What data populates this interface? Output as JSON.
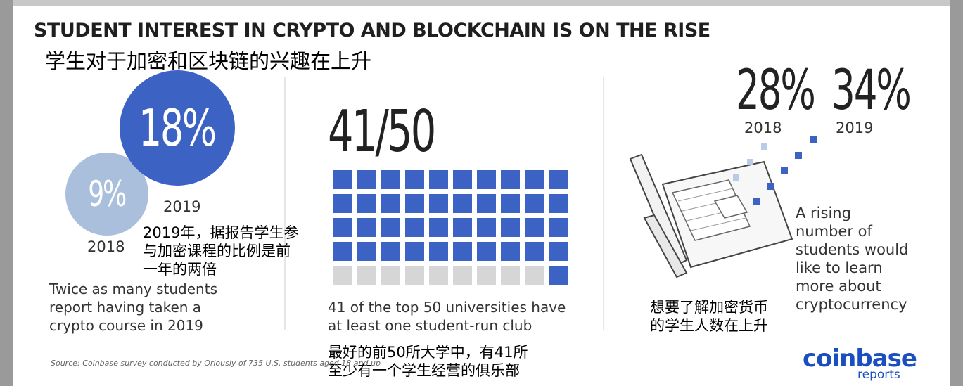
{
  "title": "STUDENT INTEREST IN CRYPTO AND BLOCKCHAIN IS ON THE RISE",
  "title_cn": "学生对于加密和区块链的兴趣在上升",
  "chart_data": [
    {
      "type": "bubble",
      "panel": "left",
      "series": [
        {
          "year": "2018",
          "value": 9,
          "label": "9%",
          "color": "#a9bfdc"
        },
        {
          "year": "2019",
          "value": 18,
          "label": "18%",
          "color": "#3c62c4"
        }
      ],
      "caption": "Twice as many students\nreport having taken a\ncrypto course in 2019",
      "caption_cn": "2019年，据报告学生参\n与加密课程的比例是前\n一年的两倍"
    },
    {
      "type": "waffle",
      "panel": "middle",
      "headline": "41/50",
      "value": 41,
      "total": 50,
      "rows": 5,
      "cols": 10,
      "filled_color": "#3c62c4",
      "empty_color": "#d6d6d6",
      "caption": "41 of the top 50 universities have\nat least one student-run club",
      "caption_cn": "最好的前50所大学中，有41所\n至少有一个学生经营的俱乐部"
    },
    {
      "type": "comparison",
      "panel": "right",
      "series": [
        {
          "year": "2018",
          "value": 28,
          "label": "28%"
        },
        {
          "year": "2019",
          "value": 34,
          "label": "34%"
        }
      ],
      "caption": "A rising\nnumber of\nstudents would\nlike to learn\nmore about\ncryptocurrency",
      "caption_cn": "想要了解加密货币\n的学生人数在上升"
    }
  ],
  "source": "Source: Coinbase survey conducted by Qriously of 735 U.S. students aged 18 and up",
  "brand": {
    "name": "coinbase",
    "sub": "reports"
  },
  "icons": {
    "laptop": "laptop-icon"
  }
}
